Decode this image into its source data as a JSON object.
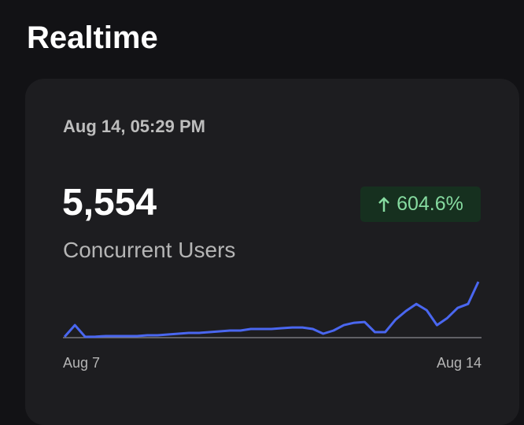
{
  "header": {
    "title": "Realtime"
  },
  "card": {
    "timestamp": "Aug 14, 05:29 PM",
    "metric_value": "5,554",
    "metric_label": "Concurrent Users",
    "change": "604.6%"
  },
  "chart_data": {
    "type": "line",
    "color": "#4a67f0",
    "values": [
      0,
      1185,
      0,
      20,
      79,
      79,
      79,
      79,
      158,
      158,
      237,
      316,
      395,
      395,
      474,
      553,
      632,
      632,
      790,
      790,
      790,
      869,
      948,
      948,
      790,
      316,
      632,
      1185,
      1422,
      1501,
      474,
      474,
      1738,
      2607,
      3318,
      2686,
      1185,
      1896,
      2923,
      3318,
      5554
    ],
    "xlabels": [
      "Aug 7",
      "Aug 14"
    ]
  }
}
